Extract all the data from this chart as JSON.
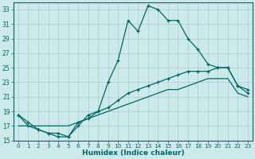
{
  "xlabel": "Humidex (Indice chaleur)",
  "bg_color": "#cceaea",
  "grid_color": "#aacccc",
  "line_color": "#006666",
  "xlim": [
    -0.5,
    23.5
  ],
  "ylim": [
    15,
    34
  ],
  "xticks": [
    0,
    1,
    2,
    3,
    4,
    5,
    6,
    7,
    8,
    9,
    10,
    11,
    12,
    13,
    14,
    15,
    16,
    17,
    18,
    19,
    20,
    21,
    22,
    23
  ],
  "yticks": [
    15,
    17,
    19,
    21,
    23,
    25,
    27,
    29,
    31,
    33
  ],
  "curve1_x": [
    0,
    1,
    2,
    3,
    4,
    5,
    6,
    7,
    8,
    9,
    10,
    11,
    12,
    13,
    14,
    15,
    16,
    17,
    18,
    19,
    20,
    21,
    22,
    23
  ],
  "curve1_y": [
    18.5,
    17.0,
    16.5,
    16.0,
    15.5,
    15.5,
    17.5,
    18.0,
    19.0,
    23.0,
    26.0,
    31.5,
    30.0,
    33.5,
    33.0,
    31.5,
    31.5,
    29.0,
    27.5,
    25.5,
    25.0,
    25.0,
    22.5,
    21.5
  ],
  "curve2_x": [
    0,
    1,
    2,
    3,
    4,
    5,
    6,
    7,
    8,
    9,
    10,
    11,
    12,
    13,
    14,
    15,
    16,
    17,
    18,
    19,
    20,
    21,
    22,
    23
  ],
  "curve2_y": [
    18.5,
    17.5,
    16.5,
    16.0,
    16.0,
    15.5,
    17.0,
    18.5,
    19.0,
    19.5,
    20.5,
    21.5,
    22.0,
    22.5,
    23.0,
    23.5,
    24.0,
    24.5,
    24.5,
    24.5,
    25.0,
    25.0,
    22.5,
    22.0
  ],
  "curve3_x": [
    0,
    1,
    2,
    3,
    4,
    5,
    6,
    7,
    8,
    9,
    10,
    11,
    12,
    13,
    14,
    15,
    16,
    17,
    18,
    19,
    20,
    21,
    22,
    23
  ],
  "curve3_y": [
    17.0,
    17.0,
    17.0,
    17.0,
    17.0,
    17.0,
    17.5,
    18.0,
    18.5,
    19.0,
    19.5,
    20.0,
    20.5,
    21.0,
    21.5,
    22.0,
    22.0,
    22.5,
    23.0,
    23.5,
    23.5,
    23.5,
    21.5,
    21.0
  ]
}
